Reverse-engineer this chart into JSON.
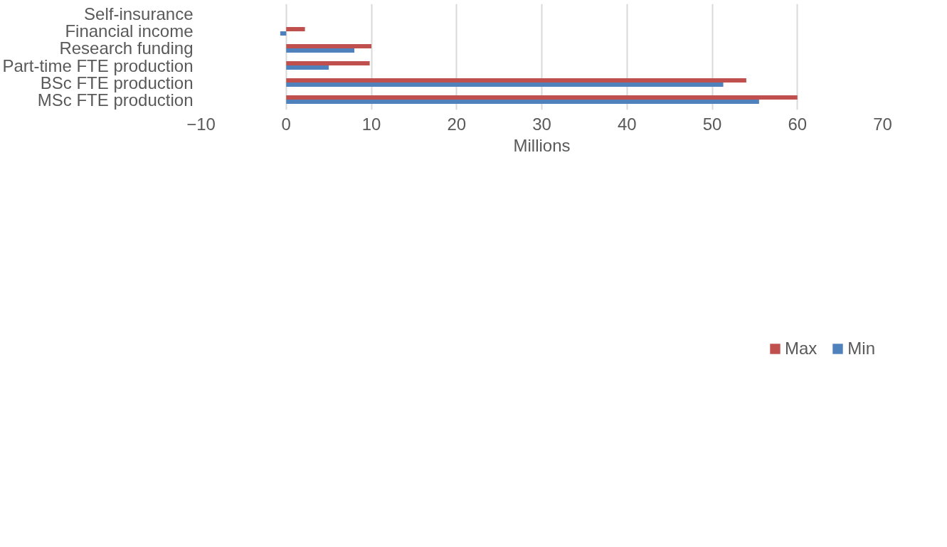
{
  "chart_data": {
    "type": "bar",
    "orientation": "horizontal",
    "xlabel": "Millions",
    "categories": [
      "Self-insurance",
      "Financial income",
      "Research funding",
      "Part-time FTE production",
      "BSc FTE production",
      "MSc FTE production"
    ],
    "series": [
      {
        "name": "Max",
        "color": "#c0504d",
        "values": [
          0,
          2.2,
          10.0,
          9.8,
          54.0,
          60.0
        ]
      },
      {
        "name": "Min",
        "color": "#4f81bd",
        "values": [
          0,
          -0.7,
          8.0,
          5.0,
          51.3,
          55.5
        ]
      }
    ],
    "xlim": [
      -10,
      70
    ],
    "xticks": [
      -10,
      0,
      10,
      20,
      30,
      40,
      50,
      60,
      70
    ],
    "grid": "x",
    "legend": "bottom"
  }
}
